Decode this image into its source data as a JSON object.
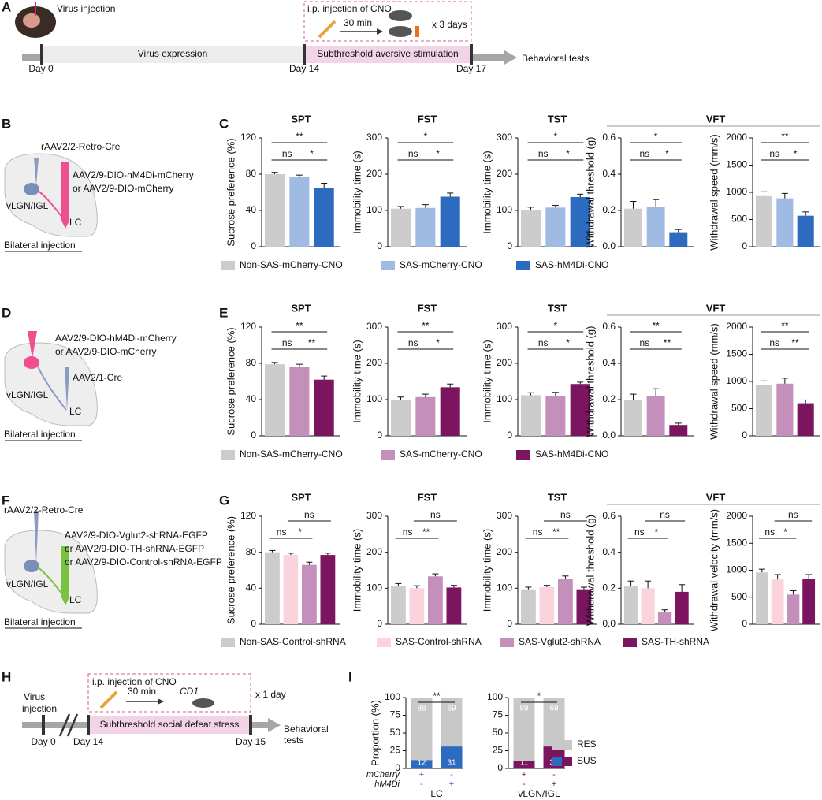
{
  "panel_letters": [
    "A",
    "B",
    "C",
    "D",
    "E",
    "F",
    "G",
    "H",
    "I"
  ],
  "timeline_a": {
    "virus_injection": "Virus injection",
    "cno": "i.p. injection of CNO",
    "min": "30 min",
    "days": "x 3 days",
    "expression": "Virus expression",
    "stimulation": "Subthreshold aversive stimulation",
    "tests": "Behavioral tests",
    "day0": "Day 0",
    "day14": "Day 14",
    "day17": "Day 17"
  },
  "schematics": [
    {
      "lines": [
        "rAAV2/2-Retro-Cre",
        "AAV2/9-DIO-hM4Di-mCherry",
        "or AAV2/9-DIO-mCherry",
        "vLGN/IGL",
        "LC",
        "Bilateral injection"
      ]
    },
    {
      "lines": [
        "AAV2/9-DIO-hM4Di-mCherry",
        "or AAV2/9-DIO-mCherry",
        "AAV2/1-Cre",
        "vLGN/IGL",
        "LC",
        "Bilateral injection"
      ]
    },
    {
      "lines": [
        "rAAV2/2-Retro-Cre",
        "AAV2/9-DIO-Vglut2-shRNA-EGFP",
        "or AAV2/9-DIO-TH-shRNA-EGFP",
        "or AAV2/9-DIO-Control-shRNA-EGFP",
        "vLGN/IGL",
        "LC",
        "Bilateral injection"
      ]
    }
  ],
  "vft_titles": [
    "VFT",
    "VFT",
    "VFT"
  ],
  "legends": [
    [
      {
        "name": "Non-SAS-mCherry-CNO",
        "color": "#cccccc"
      },
      {
        "name": "SAS-mCherry-CNO",
        "color": "#9fbbe4"
      },
      {
        "name": "SAS-hM4Di-CNO",
        "color": "#2c6bc0"
      }
    ],
    [
      {
        "name": "Non-SAS-mCherry-CNO",
        "color": "#cccccc"
      },
      {
        "name": "SAS-mCherry-CNO",
        "color": "#c48fba"
      },
      {
        "name": "SAS-hM4Di-CNO",
        "color": "#7b1560"
      }
    ],
    [
      {
        "name": "Non-SAS-Control-shRNA",
        "color": "#cccccc"
      },
      {
        "name": "SAS-Control-shRNA",
        "color": "#fbd3dc"
      },
      {
        "name": "SAS-Vglut2-shRNA",
        "color": "#c48fba"
      },
      {
        "name": "SAS-TH-shRNA",
        "color": "#7b1560"
      }
    ]
  ],
  "timeline_h": {
    "virus_injection": [
      "Virus",
      "injection"
    ],
    "cno": "i.p. injection of CNO",
    "min": "30 min",
    "cd1": "CD1",
    "days": "x 1 day",
    "stimulation": "Subthreshold social defeat stress",
    "tests": [
      "Behavioral",
      "tests"
    ],
    "day0": "Day 0",
    "day14": "Day 14",
    "day15": "Day 15"
  },
  "legend_i": [
    {
      "name": "RES",
      "color": "#c8c8c8"
    },
    {
      "name": "SUS",
      "colors": [
        "#2c6bc0",
        "#7b1560"
      ]
    }
  ],
  "chart_data": [
    {
      "type": "bar",
      "title": "SPT",
      "ylabel": "Sucrose preference (%)",
      "ylim": [
        0,
        120
      ],
      "yticks": [
        0,
        40,
        80,
        120
      ],
      "values": [
        80,
        77,
        65
      ],
      "errors": [
        2,
        2,
        5
      ],
      "colors": [
        "#cccccc",
        "#9fbbe4",
        "#2c6bc0"
      ],
      "significance": [
        {
          "label": "**",
          "bars": [
            0,
            2
          ],
          "level": 1
        },
        {
          "label": "ns",
          "bars": [
            0,
            1
          ],
          "level": 0
        },
        {
          "label": "*",
          "bars": [
            1,
            2
          ],
          "level": 0
        }
      ]
    },
    {
      "type": "bar",
      "title": "FST",
      "ylabel": "Immobility time (s)",
      "ylim": [
        0,
        300
      ],
      "yticks": [
        0,
        100,
        200,
        300
      ],
      "values": [
        105,
        107,
        138
      ],
      "errors": [
        6,
        9,
        10
      ],
      "colors": [
        "#cccccc",
        "#9fbbe4",
        "#2c6bc0"
      ],
      "significance": [
        {
          "label": "*",
          "bars": [
            0,
            2
          ],
          "level": 1
        },
        {
          "label": "ns",
          "bars": [
            0,
            1
          ],
          "level": 0
        },
        {
          "label": "*",
          "bars": [
            1,
            2
          ],
          "level": 0
        }
      ]
    },
    {
      "type": "bar",
      "title": "TST",
      "ylabel": "Immobility time (s)",
      "ylim": [
        0,
        300
      ],
      "yticks": [
        0,
        100,
        200,
        300
      ],
      "values": [
        102,
        108,
        137
      ],
      "errors": [
        7,
        6,
        8
      ],
      "colors": [
        "#cccccc",
        "#9fbbe4",
        "#2c6bc0"
      ],
      "significance": [
        {
          "label": "*",
          "bars": [
            0,
            2
          ],
          "level": 1
        },
        {
          "label": "ns",
          "bars": [
            0,
            1
          ],
          "level": 0
        },
        {
          "label": "*",
          "bars": [
            1,
            2
          ],
          "level": 0
        }
      ]
    },
    {
      "type": "bar",
      "ylabel": "Withdrawal threshold (g)",
      "ylim": [
        0,
        0.6
      ],
      "yticks": [
        {
          "value": 0,
          "label": "0.0"
        },
        0.2,
        0.4,
        0.6
      ],
      "values": [
        0.21,
        0.22,
        0.08
      ],
      "errors": [
        0.04,
        0.04,
        0.015
      ],
      "colors": [
        "#cccccc",
        "#9fbbe4",
        "#2c6bc0"
      ],
      "significance": [
        {
          "label": "*",
          "bars": [
            0,
            2
          ],
          "level": 1
        },
        {
          "label": "ns",
          "bars": [
            0,
            1
          ],
          "level": 0
        },
        {
          "label": "*",
          "bars": [
            1,
            2
          ],
          "level": 0
        }
      ]
    },
    {
      "type": "bar",
      "ylabel": "Withdrawal speed (mm/s)",
      "ylim": [
        0,
        2000
      ],
      "yticks": [
        0,
        500,
        1000,
        1500,
        2000
      ],
      "values": [
        930,
        890,
        570
      ],
      "errors": [
        80,
        90,
        70
      ],
      "colors": [
        "#cccccc",
        "#9fbbe4",
        "#2c6bc0"
      ],
      "significance": [
        {
          "label": "**",
          "bars": [
            0,
            2
          ],
          "level": 1
        },
        {
          "label": "ns",
          "bars": [
            0,
            1
          ],
          "level": 0
        },
        {
          "label": "*",
          "bars": [
            1,
            2
          ],
          "level": 0
        }
      ]
    },
    {
      "type": "bar",
      "title": "SPT",
      "ylabel": "Sucrose preference (%)",
      "ylim": [
        0,
        120
      ],
      "yticks": [
        0,
        40,
        80,
        120
      ],
      "values": [
        79,
        76,
        62
      ],
      "errors": [
        2,
        3,
        4
      ],
      "colors": [
        "#cccccc",
        "#c48fba",
        "#7b1560"
      ],
      "significance": [
        {
          "label": "**",
          "bars": [
            0,
            2
          ],
          "level": 1
        },
        {
          "label": "ns",
          "bars": [
            0,
            1
          ],
          "level": 0
        },
        {
          "label": "**",
          "bars": [
            1,
            2
          ],
          "level": 0
        }
      ]
    },
    {
      "type": "bar",
      "title": "FST",
      "ylabel": "Immobility time (s)",
      "ylim": [
        0,
        300
      ],
      "yticks": [
        0,
        100,
        200,
        300
      ],
      "values": [
        100,
        107,
        134
      ],
      "errors": [
        7,
        8,
        9
      ],
      "colors": [
        "#cccccc",
        "#c48fba",
        "#7b1560"
      ],
      "significance": [
        {
          "label": "**",
          "bars": [
            0,
            2
          ],
          "level": 1
        },
        {
          "label": "ns",
          "bars": [
            0,
            1
          ],
          "level": 0
        },
        {
          "label": "*",
          "bars": [
            1,
            2
          ],
          "level": 0
        }
      ]
    },
    {
      "type": "bar",
      "title": "TST",
      "ylabel": "Immobility time (s)",
      "ylim": [
        0,
        300
      ],
      "yticks": [
        0,
        100,
        200,
        300
      ],
      "values": [
        112,
        110,
        143
      ],
      "errors": [
        7,
        10,
        5
      ],
      "colors": [
        "#cccccc",
        "#c48fba",
        "#7b1560"
      ],
      "significance": [
        {
          "label": "*",
          "bars": [
            0,
            2
          ],
          "level": 1
        },
        {
          "label": "ns",
          "bars": [
            0,
            1
          ],
          "level": 0
        },
        {
          "label": "*",
          "bars": [
            1,
            2
          ],
          "level": 0
        }
      ]
    },
    {
      "type": "bar",
      "ylabel": "Withdrawal threshold (g)",
      "ylim": [
        0,
        0.6
      ],
      "yticks": [
        {
          "value": 0,
          "label": "0.0"
        },
        0.2,
        0.4,
        0.6
      ],
      "values": [
        0.2,
        0.22,
        0.06
      ],
      "errors": [
        0.03,
        0.04,
        0.01
      ],
      "colors": [
        "#cccccc",
        "#c48fba",
        "#7b1560"
      ],
      "significance": [
        {
          "label": "**",
          "bars": [
            0,
            2
          ],
          "level": 1
        },
        {
          "label": "ns",
          "bars": [
            0,
            1
          ],
          "level": 0
        },
        {
          "label": "**",
          "bars": [
            1,
            2
          ],
          "level": 0
        }
      ]
    },
    {
      "type": "bar",
      "ylabel": "Withdrawal speed (mm/s)",
      "ylim": [
        0,
        2000
      ],
      "yticks": [
        0,
        500,
        1000,
        1500,
        2000
      ],
      "values": [
        930,
        960,
        600
      ],
      "errors": [
        80,
        100,
        60
      ],
      "colors": [
        "#cccccc",
        "#c48fba",
        "#7b1560"
      ],
      "significance": [
        {
          "label": "**",
          "bars": [
            0,
            2
          ],
          "level": 1
        },
        {
          "label": "ns",
          "bars": [
            0,
            1
          ],
          "level": 0
        },
        {
          "label": "**",
          "bars": [
            1,
            2
          ],
          "level": 0
        }
      ]
    },
    {
      "type": "bar",
      "title": "SPT",
      "ylabel": "Sucrose preference (%)",
      "ylim": [
        0,
        120
      ],
      "yticks": [
        0,
        40,
        80,
        120
      ],
      "values": [
        80,
        77,
        66,
        77
      ],
      "errors": [
        2,
        2,
        3,
        2
      ],
      "colors": [
        "#cccccc",
        "#fbd3dc",
        "#c48fba",
        "#7b1560"
      ],
      "significance": [
        {
          "label": "ns",
          "bars": [
            1,
            3
          ],
          "level": 1
        },
        {
          "label": "ns",
          "bars": [
            0,
            1
          ],
          "level": 0
        },
        {
          "label": "*",
          "bars": [
            1,
            2
          ],
          "level": 0
        }
      ]
    },
    {
      "type": "bar",
      "title": "FST",
      "ylabel": "Immobility time (s)",
      "ylim": [
        0,
        300
      ],
      "yticks": [
        0,
        100,
        200,
        300
      ],
      "values": [
        107,
        100,
        133,
        102
      ],
      "errors": [
        6,
        7,
        7,
        6
      ],
      "colors": [
        "#cccccc",
        "#fbd3dc",
        "#c48fba",
        "#7b1560"
      ],
      "significance": [
        {
          "label": "ns",
          "bars": [
            1,
            3
          ],
          "level": 1
        },
        {
          "label": "ns",
          "bars": [
            0,
            1
          ],
          "level": 0
        },
        {
          "label": "**",
          "bars": [
            1,
            2
          ],
          "level": 0
        }
      ]
    },
    {
      "type": "bar",
      "title": "TST",
      "ylabel": "Immobility time (s)",
      "ylim": [
        0,
        300
      ],
      "yticks": [
        0,
        100,
        200,
        300
      ],
      "values": [
        97,
        103,
        127,
        97
      ],
      "errors": [
        6,
        5,
        7,
        6
      ],
      "colors": [
        "#cccccc",
        "#fbd3dc",
        "#c48fba",
        "#7b1560"
      ],
      "significance": [
        {
          "label": "ns",
          "bars": [
            1,
            3
          ],
          "level": 1
        },
        {
          "label": "ns",
          "bars": [
            0,
            1
          ],
          "level": 0
        },
        {
          "label": "**",
          "bars": [
            1,
            2
          ],
          "level": 0
        }
      ]
    },
    {
      "type": "bar",
      "ylabel": "Withdrawal threshold (g)",
      "ylim": [
        0,
        0.6
      ],
      "yticks": [
        {
          "value": 0,
          "label": "0.0"
        },
        0.2,
        0.4,
        0.6
      ],
      "values": [
        0.21,
        0.2,
        0.07,
        0.18
      ],
      "errors": [
        0.03,
        0.04,
        0.01,
        0.04
      ],
      "colors": [
        "#cccccc",
        "#fbd3dc",
        "#c48fba",
        "#7b1560"
      ],
      "significance": [
        {
          "label": "ns",
          "bars": [
            1,
            3
          ],
          "level": 1
        },
        {
          "label": "ns",
          "bars": [
            0,
            1
          ],
          "level": 0
        },
        {
          "label": "*",
          "bars": [
            1,
            2
          ],
          "level": 0
        }
      ]
    },
    {
      "type": "bar",
      "ylabel": "Withdrawal velocity (mm/s)",
      "ylim": [
        0,
        2000
      ],
      "yticks": [
        0,
        500,
        1000,
        1500,
        2000
      ],
      "values": [
        960,
        830,
        550,
        840
      ],
      "errors": [
        60,
        90,
        70,
        80
      ],
      "colors": [
        "#cccccc",
        "#fbd3dc",
        "#c48fba",
        "#7b1560"
      ],
      "significance": [
        {
          "label": "ns",
          "bars": [
            1,
            3
          ],
          "level": 1
        },
        {
          "label": "ns",
          "bars": [
            0,
            1
          ],
          "level": 0
        },
        {
          "label": "*",
          "bars": [
            1,
            2
          ],
          "level": 0
        }
      ]
    },
    {
      "type": "stacked_bar",
      "ylabel": "Proportion (%)",
      "ylim": [
        0,
        100
      ],
      "yticks": [
        0,
        25,
        50,
        75,
        100
      ],
      "series": [
        {
          "color": "#2c6bc0",
          "values": [
            12,
            31
          ]
        },
        {
          "color": "#c8c8c8",
          "values": [
            88,
            69
          ]
        }
      ],
      "significance": [
        {
          "label": "**",
          "bars": [
            0,
            1
          ],
          "level": 1
        }
      ],
      "row_labels": [
        "mCherry",
        "hM4Di"
      ],
      "signs": [
        [
          "+",
          "-"
        ],
        [
          "-",
          "+"
        ]
      ],
      "xlabel": "LC"
    },
    {
      "type": "stacked_bar",
      "ylim": [
        0,
        100
      ],
      "yticks": [
        0,
        25,
        50,
        75,
        100
      ],
      "series": [
        {
          "color": "#7b1560",
          "values": [
            11,
            31
          ]
        },
        {
          "color": "#c8c8c8",
          "values": [
            89,
            69
          ]
        }
      ],
      "significance": [
        {
          "label": "*",
          "bars": [
            0,
            1
          ],
          "level": 1
        }
      ],
      "signs": [
        [
          "+",
          "-"
        ],
        [
          "-",
          "+"
        ]
      ],
      "xlabel": "vLGN/IGL"
    }
  ]
}
